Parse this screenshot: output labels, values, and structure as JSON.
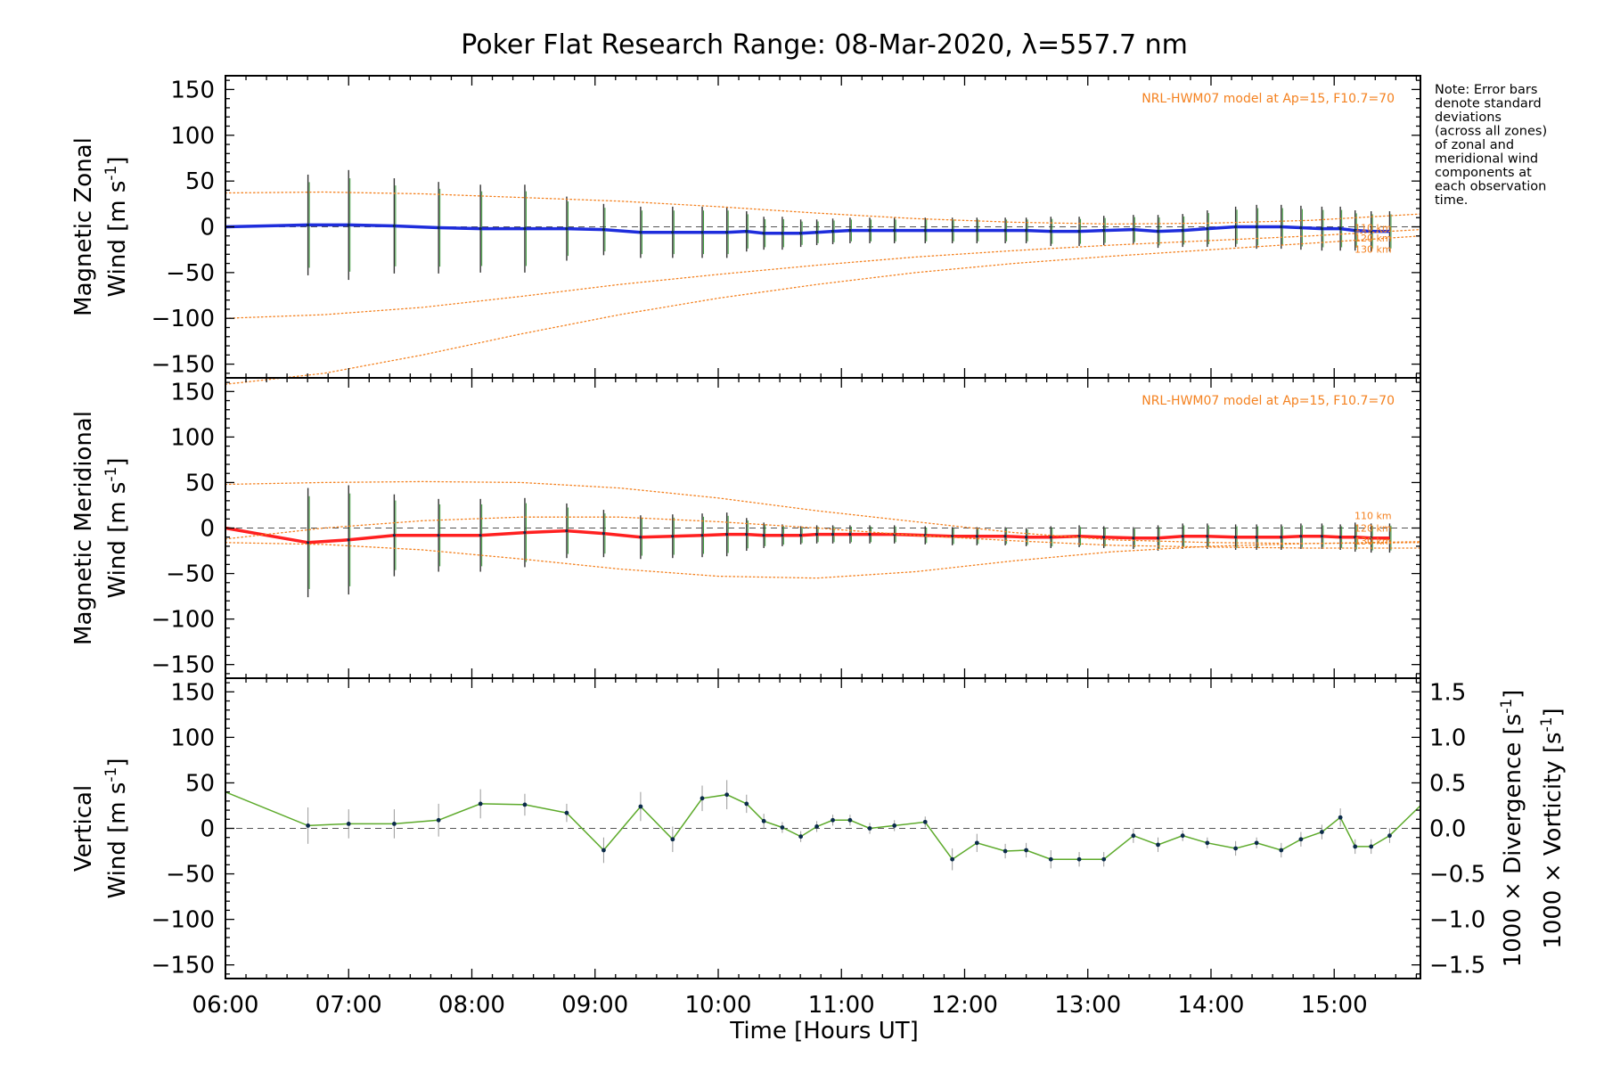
{
  "chart_data": {
    "type": "line",
    "title": "Poker Flat Research Range: 08-Mar-2020, λ=557.7 nm",
    "xlabel": "Time [Hours UT]",
    "xlim": [
      6.0,
      15.7
    ],
    "xticks": [
      6,
      7,
      8,
      9,
      10,
      11,
      12,
      13,
      14,
      15
    ],
    "xtick_labels": [
      "06:00",
      "07:00",
      "08:00",
      "09:00",
      "10:00",
      "11:00",
      "12:00",
      "13:00",
      "14:00",
      "15:00"
    ],
    "note_lines": [
      "Note: Error bars",
      "denote standard",
      "deviations",
      "(across all zones)",
      "of zonal and",
      "meridional wind",
      "components at",
      "each observation",
      "time."
    ],
    "panels": [
      {
        "name": "zonal",
        "ylabel_line1": "Magnetic Zonal",
        "ylabel_line2": "Wind [m s",
        "ylabel_sup": "-1",
        "ylabel_close": "]",
        "ylim": [
          -165,
          165
        ],
        "yticks": [
          -150,
          -100,
          -50,
          0,
          50,
          100,
          150
        ],
        "ytick_labels": [
          "−150",
          "−100",
          "−50",
          "0",
          "50",
          "100",
          "150"
        ],
        "model_label": "NRL-HWM07 model at Ap=15, F10.7=70",
        "altitude_labels": [
          "110 km",
          "120 km",
          "130 km"
        ],
        "series": [
          {
            "name": "Zonal wind",
            "color": "#1e2ddc",
            "x": [
              6.0,
              6.67,
              7.0,
              7.37,
              7.73,
              8.07,
              8.43,
              8.77,
              9.07,
              9.37,
              9.63,
              9.87,
              10.07,
              10.23,
              10.37,
              10.52,
              10.67,
              10.8,
              10.93,
              11.07,
              11.23,
              11.43,
              11.68,
              11.9,
              12.1,
              12.33,
              12.5,
              12.7,
              12.93,
              13.13,
              13.37,
              13.57,
              13.77,
              13.97,
              14.2,
              14.37,
              14.57,
              14.73,
              14.9,
              15.05,
              15.17,
              15.3,
              15.45
            ],
            "y": [
              0,
              2,
              2,
              1,
              -1,
              -2,
              -2,
              -2,
              -3,
              -6,
              -6,
              -6,
              -6,
              -5,
              -7,
              -7,
              -7,
              -6,
              -5,
              -4,
              -4,
              -4,
              -4,
              -4,
              -4,
              -4,
              -4,
              -5,
              -5,
              -4,
              -3,
              -5,
              -4,
              -2,
              0,
              0,
              0,
              -1,
              -2,
              -2,
              -4,
              -5,
              -5
            ],
            "err": [
              0,
              55,
              60,
              52,
              50,
              48,
              48,
              35,
              28,
              28,
              28,
              28,
              28,
              22,
              18,
              18,
              15,
              14,
              14,
              14,
              14,
              14,
              14,
              14,
              14,
              14,
              14,
              16,
              16,
              16,
              16,
              18,
              18,
              20,
              22,
              24,
              24,
              24,
              24,
              24,
              22,
              22,
              22
            ]
          },
          {
            "name": "110 km",
            "color": "#f4811f",
            "x": [
              6.0,
              6.8,
              7.6,
              8.4,
              9.2,
              10.0,
              10.8,
              11.6,
              12.4,
              13.2,
              14.0,
              14.8,
              15.7
            ],
            "y": [
              37,
              38,
              36,
              32,
              28,
              22,
              15,
              9,
              5,
              3,
              4,
              7,
              14
            ]
          },
          {
            "name": "120 km",
            "color": "#f4811f",
            "x": [
              6.0,
              6.8,
              7.6,
              8.4,
              9.2,
              10.0,
              10.8,
              11.6,
              12.4,
              13.2,
              14.0,
              14.8,
              15.7
            ],
            "y": [
              -100,
              -96,
              -88,
              -76,
              -63,
              -52,
              -42,
              -33,
              -26,
              -20,
              -15,
              -10,
              -3
            ]
          },
          {
            "name": "130 km",
            "color": "#f4811f",
            "x": [
              6.0,
              6.8,
              7.6,
              8.4,
              9.2,
              10.0,
              10.8,
              11.6,
              12.4,
              13.2,
              14.0,
              14.8,
              15.7
            ],
            "y": [
              -172,
              -160,
              -140,
              -117,
              -96,
              -78,
              -63,
              -50,
              -40,
              -32,
              -25,
              -18,
              -10
            ]
          }
        ]
      },
      {
        "name": "meridional",
        "ylabel_line1": "Magnetic Meridional",
        "ylabel_line2": "Wind [m s",
        "ylabel_sup": "-1",
        "ylabel_close": "]",
        "ylim": [
          -165,
          165
        ],
        "yticks": [
          -150,
          -100,
          -50,
          0,
          50,
          100,
          150
        ],
        "ytick_labels": [
          "−150",
          "−100",
          "−50",
          "0",
          "50",
          "100",
          "150"
        ],
        "model_label": "NRL-HWM07 model at Ap=15, F10.7=70",
        "altitude_labels": [
          "110 km",
          "120 km",
          "130 km"
        ],
        "series": [
          {
            "name": "Meridional wind",
            "color": "#ff2020",
            "x": [
              6.0,
              6.67,
              7.0,
              7.37,
              7.73,
              8.07,
              8.43,
              8.77,
              9.07,
              9.37,
              9.63,
              9.87,
              10.07,
              10.23,
              10.37,
              10.52,
              10.67,
              10.8,
              10.93,
              11.07,
              11.23,
              11.43,
              11.68,
              11.9,
              12.1,
              12.33,
              12.5,
              12.7,
              12.93,
              13.13,
              13.37,
              13.57,
              13.77,
              13.97,
              14.2,
              14.37,
              14.57,
              14.73,
              14.9,
              15.05,
              15.17,
              15.3,
              15.45
            ],
            "y": [
              0,
              -16,
              -13,
              -8,
              -8,
              -8,
              -5,
              -3,
              -6,
              -10,
              -9,
              -8,
              -7,
              -7,
              -8,
              -8,
              -8,
              -7,
              -7,
              -7,
              -7,
              -7,
              -8,
              -9,
              -9,
              -9,
              -10,
              -10,
              -9,
              -10,
              -11,
              -11,
              -9,
              -9,
              -10,
              -10,
              -10,
              -9,
              -9,
              -10,
              -10,
              -11,
              -11
            ],
            "err": [
              0,
              60,
              60,
              45,
              40,
              40,
              38,
              30,
              26,
              24,
              24,
              24,
              24,
              18,
              14,
              12,
              10,
              10,
              10,
              10,
              10,
              10,
              10,
              10,
              10,
              10,
              10,
              12,
              12,
              12,
              12,
              14,
              14,
              14,
              14,
              14,
              14,
              14,
              14,
              14,
              16,
              16,
              16
            ]
          },
          {
            "name": "110 km",
            "color": "#f4811f",
            "x": [
              6.0,
              6.8,
              7.6,
              8.4,
              9.2,
              10.0,
              10.8,
              11.6,
              12.4,
              13.2,
              14.0,
              14.8,
              15.7
            ],
            "y": [
              48,
              50,
              51,
              50,
              44,
              33,
              19,
              7,
              -5,
              -13,
              -16,
              -17,
              -16
            ]
          },
          {
            "name": "120 km",
            "color": "#f4811f",
            "x": [
              6.0,
              6.8,
              7.6,
              8.4,
              9.2,
              10.0,
              10.8,
              11.6,
              12.4,
              13.2,
              14.0,
              14.8,
              15.7
            ],
            "y": [
              -12,
              0,
              8,
              12,
              12,
              7,
              0,
              -8,
              -14,
              -19,
              -21,
              -22,
              -22
            ]
          },
          {
            "name": "130 km",
            "color": "#f4811f",
            "x": [
              6.0,
              6.8,
              7.6,
              8.4,
              9.2,
              10.0,
              10.8,
              11.6,
              12.4,
              13.2,
              14.0,
              14.8,
              15.7
            ],
            "y": [
              -16,
              -18,
              -24,
              -34,
              -45,
              -53,
              -55,
              -48,
              -36,
              -26,
              -20,
              -17,
              -15
            ]
          }
        ]
      },
      {
        "name": "vertical",
        "ylabel_line1": "Vertical",
        "ylabel_line2": "Wind [m s",
        "ylabel_sup": "-1",
        "ylabel_close": "]",
        "ylabel_color": "#5daa2b",
        "ylim": [
          -165,
          165
        ],
        "yticks": [
          -150,
          -100,
          -50,
          0,
          50,
          100,
          150
        ],
        "ytick_labels": [
          "−150",
          "−100",
          "−50",
          "0",
          "50",
          "100",
          "150"
        ],
        "right_ylim": [
          -1.65,
          1.65
        ],
        "right_yticks": [
          -1.5,
          -1.0,
          -0.5,
          0.0,
          0.5,
          1.0,
          1.5
        ],
        "right_ytick_labels": [
          "−1.5",
          "−1.0",
          "−0.5",
          "0.0",
          "0.5",
          "1.0",
          "1.5"
        ],
        "right_label_div": "1000 × Divergence [s",
        "right_label_div_color": "#4aa6e0",
        "right_label_vort": "1000 × Vorticity [s",
        "right_label_vort_color": "#ff3c8c",
        "right_label_sup": "-1",
        "right_label_close": "]",
        "series": [
          {
            "name": "Vertical wind",
            "color": "#5daa2b",
            "x": [
              6.0,
              6.67,
              7.0,
              7.37,
              7.73,
              8.07,
              8.43,
              8.77,
              9.07,
              9.37,
              9.63,
              9.87,
              10.07,
              10.23,
              10.37,
              10.52,
              10.67,
              10.8,
              10.93,
              11.07,
              11.23,
              11.43,
              11.68,
              11.9,
              12.1,
              12.33,
              12.5,
              12.7,
              12.93,
              13.13,
              13.37,
              13.57,
              13.77,
              13.97,
              14.2,
              14.37,
              14.57,
              14.73,
              14.9,
              15.05,
              15.17,
              15.3,
              15.45,
              15.7
            ],
            "y": [
              40,
              3,
              5,
              5,
              9,
              27,
              26,
              17,
              -24,
              24,
              -12,
              33,
              37,
              27,
              8,
              1,
              -9,
              2,
              9,
              9,
              0,
              3,
              7,
              -34,
              -16,
              -25,
              -24,
              -34,
              -34,
              -34,
              -8,
              -18,
              -8,
              -16,
              -22,
              -16,
              -24,
              -12,
              -4,
              12,
              -20,
              -20,
              -8,
              25
            ],
            "err": [
              0,
              20,
              16,
              16,
              18,
              16,
              12,
              10,
              14,
              16,
              14,
              14,
              16,
              10,
              8,
              6,
              6,
              6,
              6,
              6,
              6,
              6,
              6,
              12,
              10,
              8,
              8,
              10,
              8,
              8,
              8,
              8,
              6,
              6,
              8,
              6,
              8,
              8,
              8,
              10,
              8,
              8,
              8,
              0
            ]
          }
        ]
      }
    ]
  }
}
